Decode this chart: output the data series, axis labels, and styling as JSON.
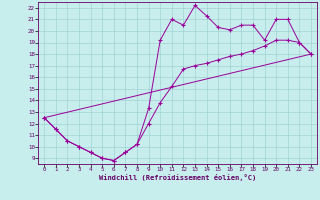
{
  "background_color": "#c8eded",
  "line_color": "#990099",
  "xlabel": "Windchill (Refroidissement éolien,°C)",
  "xlim": [
    -0.5,
    23.5
  ],
  "ylim": [
    8.5,
    22.5
  ],
  "xticks": [
    0,
    1,
    2,
    3,
    4,
    5,
    6,
    7,
    8,
    9,
    10,
    11,
    12,
    13,
    14,
    15,
    16,
    17,
    18,
    19,
    20,
    21,
    22,
    23
  ],
  "yticks": [
    9,
    10,
    11,
    12,
    13,
    14,
    15,
    16,
    17,
    18,
    19,
    20,
    21,
    22
  ],
  "line1_x": [
    0,
    1,
    2,
    3,
    4,
    5,
    6,
    7,
    8,
    9,
    10,
    11,
    12,
    13,
    14,
    15,
    16,
    17,
    18,
    19,
    20,
    21,
    22,
    23
  ],
  "line1_y": [
    12.5,
    11.5,
    10.5,
    10.0,
    9.5,
    9.0,
    8.8,
    9.5,
    10.2,
    13.3,
    19.2,
    21.0,
    20.5,
    22.2,
    21.3,
    20.3,
    20.1,
    20.5,
    20.5,
    19.2,
    21.0,
    21.0,
    19.0,
    18.0
  ],
  "line2_x": [
    0,
    1,
    2,
    3,
    4,
    5,
    6,
    7,
    8,
    9,
    10,
    11,
    12,
    13,
    14,
    15,
    16,
    17,
    18,
    19,
    20,
    21,
    22,
    23
  ],
  "line2_y": [
    12.5,
    11.5,
    10.5,
    10.0,
    9.5,
    9.0,
    8.8,
    9.5,
    10.2,
    12.0,
    13.8,
    15.2,
    16.7,
    17.0,
    17.2,
    17.5,
    17.8,
    18.0,
    18.3,
    18.7,
    19.2,
    19.2,
    19.0,
    18.0
  ],
  "line3_x": [
    0,
    23
  ],
  "line3_y": [
    12.5,
    18.0
  ]
}
